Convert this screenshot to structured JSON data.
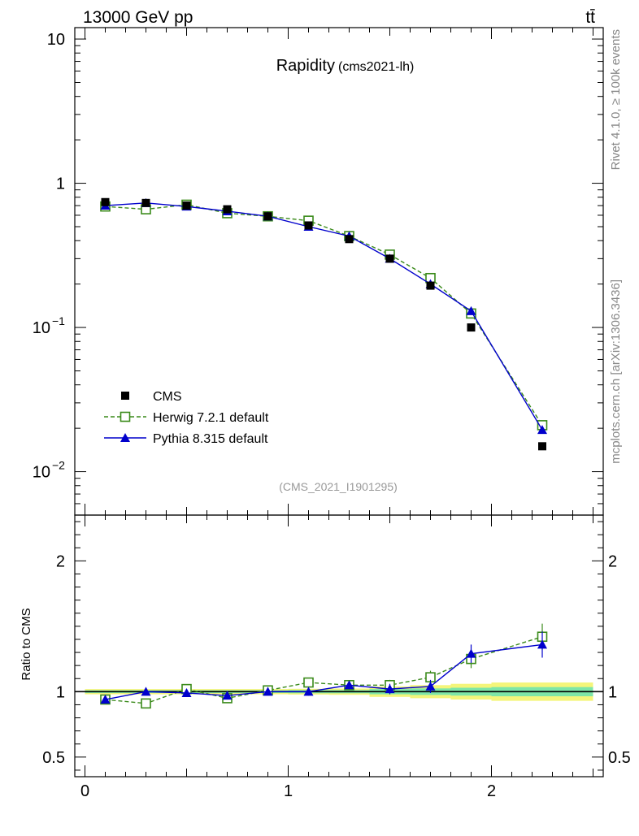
{
  "header": {
    "energy_label": "13000 GeV pp",
    "process_label": "tt̄",
    "side_version": "Rivet 4.1.0, ≥ 100k events",
    "side_source": "mcplots.cern.ch [arXiv:1306.3436]"
  },
  "colors": {
    "cms": "#000000",
    "herwig": "#3a8a1a",
    "pythia": "#0000cc",
    "band_inner": "#7de6a8",
    "band_outer": "#f4f57a"
  },
  "chart_data": {
    "type": "scatter",
    "title": "Rapidity",
    "subtitle": "(cms2021-lh)",
    "analysis_label": "(CMS_2021_I1901295)",
    "xlabel": "",
    "xlim": [
      -0.05,
      2.55
    ],
    "x_ticks": [
      {
        "value": 0,
        "label": "0"
      },
      {
        "value": 1,
        "label": "1"
      },
      {
        "value": 2,
        "label": "2"
      }
    ],
    "main": {
      "yscale": "log",
      "ylim": [
        0.005,
        12
      ],
      "y_ticks": [
        {
          "value": 10,
          "label": "10"
        },
        {
          "value": 1,
          "label": "1"
        },
        {
          "value": 0.1,
          "label_base": "10",
          "label_exp": "−1"
        },
        {
          "value": 0.01,
          "label_base": "10",
          "label_exp": "−2"
        }
      ],
      "legend": [
        {
          "key": "cms",
          "label": "CMS"
        },
        {
          "key": "herwig",
          "label": "Herwig 7.2.1 default"
        },
        {
          "key": "pythia",
          "label": "Pythia 8.315 default"
        }
      ],
      "legend_position": "bottom-left",
      "series": [
        {
          "key": "cms",
          "name": "CMS",
          "x": [
            0.1,
            0.3,
            0.5,
            0.7,
            0.9,
            1.1,
            1.3,
            1.5,
            1.7,
            1.9,
            2.25
          ],
          "y": [
            0.74,
            0.73,
            0.7,
            0.66,
            0.59,
            0.51,
            0.41,
            0.3,
            0.195,
            0.1,
            0.015
          ]
        },
        {
          "key": "herwig",
          "name": "Herwig 7.2.1 default",
          "x": [
            0.1,
            0.3,
            0.5,
            0.7,
            0.9,
            1.1,
            1.3,
            1.5,
            1.7,
            1.9,
            2.25
          ],
          "y": [
            0.69,
            0.66,
            0.71,
            0.62,
            0.59,
            0.55,
            0.43,
            0.32,
            0.22,
            0.125,
            0.021
          ]
        },
        {
          "key": "pythia",
          "name": "Pythia 8.315 default",
          "x": [
            0.1,
            0.3,
            0.5,
            0.7,
            0.9,
            1.1,
            1.3,
            1.5,
            1.7,
            1.9,
            2.25
          ],
          "y": [
            0.7,
            0.73,
            0.69,
            0.64,
            0.59,
            0.5,
            0.43,
            0.3,
            0.2,
            0.13,
            0.0195
          ]
        }
      ]
    },
    "ratio": {
      "ylabel": "Ratio to CMS",
      "ylim": [
        0.35,
        2.35
      ],
      "y_ticks": [
        {
          "value": 2,
          "label": "2"
        },
        {
          "value": 1,
          "label": "1"
        },
        {
          "value": 0.5,
          "label": "0.5"
        }
      ],
      "bands": [
        {
          "x0": 0.0,
          "x1": 0.2,
          "inner": 0.01,
          "outer": 0.02
        },
        {
          "x0": 0.2,
          "x1": 0.4,
          "inner": 0.01,
          "outer": 0.02
        },
        {
          "x0": 0.4,
          "x1": 0.6,
          "inner": 0.01,
          "outer": 0.02
        },
        {
          "x0": 0.6,
          "x1": 0.8,
          "inner": 0.01,
          "outer": 0.02
        },
        {
          "x0": 0.8,
          "x1": 1.0,
          "inner": 0.01,
          "outer": 0.02
        },
        {
          "x0": 1.0,
          "x1": 1.2,
          "inner": 0.012,
          "outer": 0.022
        },
        {
          "x0": 1.2,
          "x1": 1.4,
          "inner": 0.012,
          "outer": 0.024
        },
        {
          "x0": 1.4,
          "x1": 1.6,
          "inner": 0.02,
          "outer": 0.04
        },
        {
          "x0": 1.6,
          "x1": 1.8,
          "inner": 0.025,
          "outer": 0.05
        },
        {
          "x0": 1.8,
          "x1": 2.0,
          "inner": 0.03,
          "outer": 0.06
        },
        {
          "x0": 2.0,
          "x1": 2.5,
          "inner": 0.035,
          "outer": 0.07
        }
      ],
      "series": [
        {
          "key": "herwig",
          "name": "Herwig 7.2.1 default",
          "x": [
            0.1,
            0.3,
            0.5,
            0.7,
            0.9,
            1.1,
            1.3,
            1.5,
            1.7,
            1.9,
            2.25
          ],
          "y": [
            0.94,
            0.91,
            1.02,
            0.95,
            1.01,
            1.07,
            1.05,
            1.05,
            1.11,
            1.25,
            1.42
          ],
          "err": [
            0.02,
            0.02,
            0.02,
            0.02,
            0.02,
            0.03,
            0.03,
            0.04,
            0.05,
            0.07,
            0.1
          ]
        },
        {
          "key": "pythia",
          "name": "Pythia 8.315 default",
          "x": [
            0.1,
            0.3,
            0.5,
            0.7,
            0.9,
            1.1,
            1.3,
            1.5,
            1.7,
            1.9,
            2.25
          ],
          "y": [
            0.94,
            1.0,
            0.99,
            0.97,
            1.0,
            1.0,
            1.05,
            1.02,
            1.04,
            1.29,
            1.36
          ],
          "err": [
            0.02,
            0.02,
            0.02,
            0.02,
            0.02,
            0.03,
            0.03,
            0.04,
            0.05,
            0.07,
            0.1
          ]
        }
      ]
    }
  }
}
